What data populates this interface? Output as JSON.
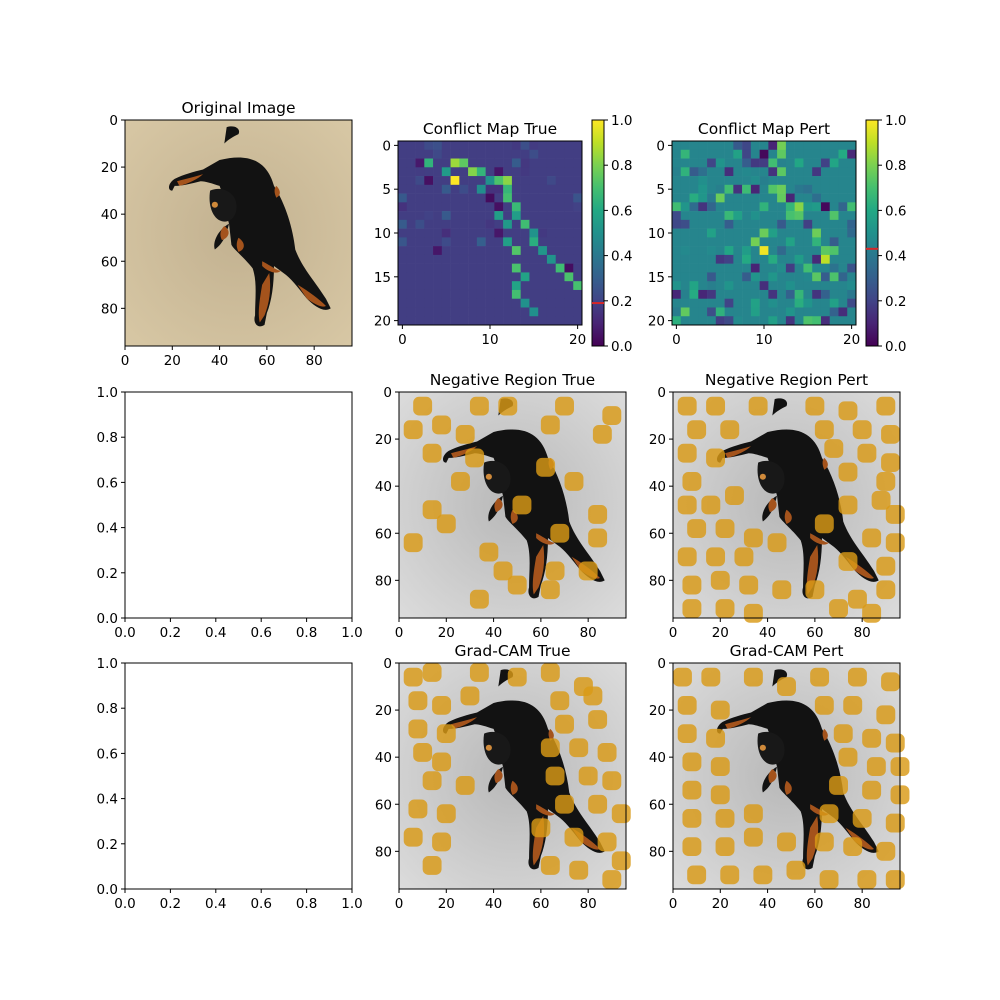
{
  "chart_data": [
    {
      "id": "original",
      "type": "heatmap",
      "title": "Original Image",
      "content": "photo",
      "xlim": [
        0,
        96
      ],
      "ylim": [
        96,
        0
      ],
      "xticks": [
        0,
        20,
        40,
        60,
        80
      ],
      "yticks": [
        0,
        20,
        40,
        60,
        80
      ],
      "colors": {
        "background": "#c9b896",
        "dog": "#121212",
        "tan": "#a4531c"
      }
    },
    {
      "id": "conflict-true",
      "type": "heatmap",
      "title": "Conflict Map True",
      "grid_size": 21,
      "base_value": 0.18,
      "xlim": [
        0,
        21
      ],
      "ylim": [
        21,
        0
      ],
      "xticks": [
        0,
        10,
        20
      ],
      "yticks": [
        0,
        5,
        10,
        15,
        20
      ],
      "colorbar": {
        "min": 0.0,
        "max": 1.0,
        "ticks": [
          "0.0",
          "0.2",
          "0.4",
          "0.6",
          "0.8",
          "1.0"
        ],
        "marker": 0.19
      },
      "colormap": "viridis"
    },
    {
      "id": "conflict-pert",
      "type": "heatmap",
      "title": "Conflict Map Pert",
      "grid_size": 21,
      "base_value": 0.45,
      "xlim": [
        0,
        21
      ],
      "ylim": [
        21,
        0
      ],
      "xticks": [
        0,
        10,
        20
      ],
      "yticks": [
        0,
        5,
        10,
        15,
        20
      ],
      "colorbar": {
        "min": 0.0,
        "max": 1.0,
        "ticks": [
          "0.0",
          "0.2",
          "0.4",
          "0.6",
          "0.8",
          "1.0"
        ],
        "marker": 0.43
      },
      "colormap": "viridis"
    },
    {
      "id": "empty-1",
      "type": "line",
      "title": "",
      "xlim": [
        0.0,
        1.0
      ],
      "ylim": [
        0.0,
        1.0
      ],
      "xticks": [
        "0.0",
        "0.2",
        "0.4",
        "0.6",
        "0.8",
        "1.0"
      ],
      "yticks": [
        "0.0",
        "0.2",
        "0.4",
        "0.6",
        "0.8",
        "1.0"
      ]
    },
    {
      "id": "neg-true",
      "type": "heatmap",
      "title": "Negative Region True",
      "content": "overlay",
      "xlim": [
        0,
        96
      ],
      "ylim": [
        96,
        0
      ],
      "xticks": [
        0,
        20,
        40,
        60,
        80
      ],
      "yticks": [
        0,
        20,
        40,
        60,
        80
      ],
      "overlay_color": "#d99a16"
    },
    {
      "id": "neg-pert",
      "type": "heatmap",
      "title": "Negative Region Pert",
      "content": "overlay",
      "xlim": [
        0,
        96
      ],
      "ylim": [
        96,
        0
      ],
      "xticks": [
        0,
        20,
        40,
        60,
        80
      ],
      "yticks": [
        0,
        20,
        40,
        60,
        80
      ],
      "overlay_color": "#d99a16"
    },
    {
      "id": "empty-2",
      "type": "line",
      "title": "",
      "xlim": [
        0.0,
        1.0
      ],
      "ylim": [
        0.0,
        1.0
      ],
      "xticks": [
        "0.0",
        "0.2",
        "0.4",
        "0.6",
        "0.8",
        "1.0"
      ],
      "yticks": [
        "0.0",
        "0.2",
        "0.4",
        "0.6",
        "0.8",
        "1.0"
      ]
    },
    {
      "id": "gradcam-true",
      "type": "heatmap",
      "title": "Grad-CAM True",
      "content": "overlay",
      "xlim": [
        0,
        96
      ],
      "ylim": [
        96,
        0
      ],
      "xticks": [
        0,
        20,
        40,
        60,
        80
      ],
      "yticks": [
        0,
        20,
        40,
        60,
        80
      ],
      "overlay_color": "#d99a16"
    },
    {
      "id": "gradcam-pert",
      "type": "heatmap",
      "title": "Grad-CAM Pert",
      "content": "overlay",
      "xlim": [
        0,
        96
      ],
      "ylim": [
        96,
        0
      ],
      "xticks": [
        0,
        20,
        40,
        60,
        80
      ],
      "yticks": [
        0,
        20,
        40,
        60,
        80
      ],
      "overlay_color": "#d99a16"
    }
  ]
}
